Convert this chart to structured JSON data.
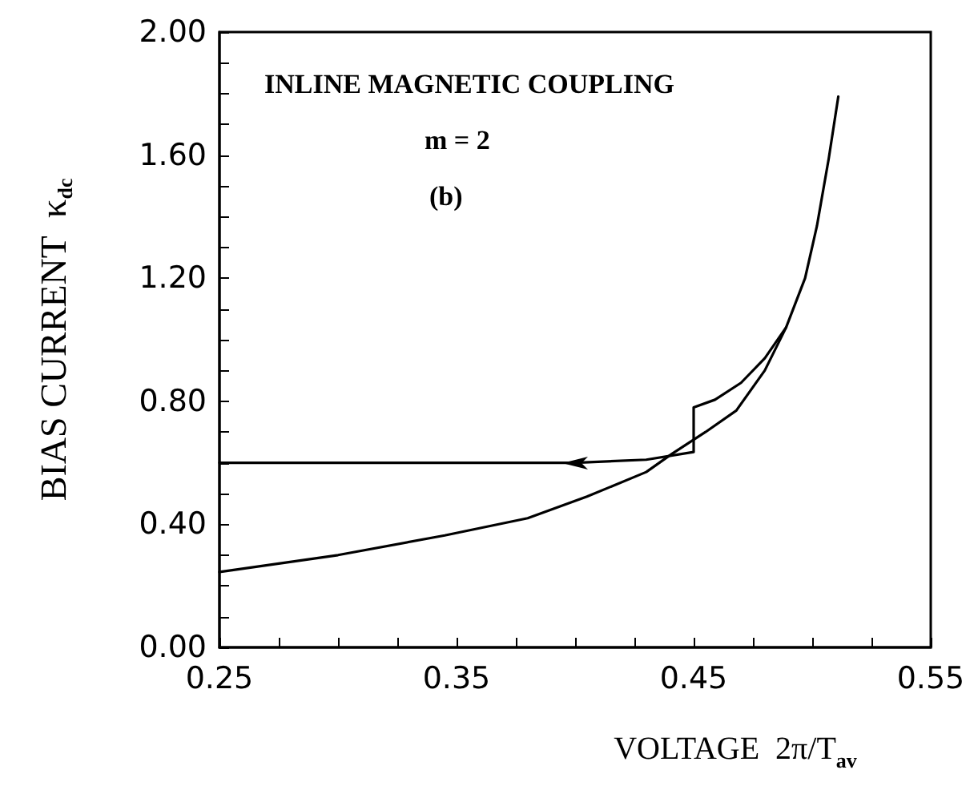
{
  "chart_data": {
    "type": "line",
    "xlabel": "VOLTAGE  2π/T$_{av}$",
    "ylabel": "BIAS CURRENT  κ$_{dc}$",
    "annotations": [
      "INLINE MAGNETIC COUPLING",
      "m = 2",
      "(b)"
    ],
    "series": [
      {
        "color": "#000000",
        "x": [
          0.25,
          0.3,
          0.345,
          0.38,
          0.405,
          0.43,
          0.441,
          0.455,
          0.468,
          0.48,
          0.489,
          0.497,
          0.502,
          0.507,
          0.511
        ],
        "values": [
          0.245,
          0.3,
          0.364,
          0.42,
          0.49,
          0.57,
          0.63,
          0.7,
          0.77,
          0.9,
          1.04,
          1.2,
          1.37,
          1.59,
          1.79
        ]
      },
      {
        "color": "#000000",
        "x": [
          0.25,
          0.4,
          0.43,
          0.45,
          0.45,
          0.459,
          0.47,
          0.48,
          0.489
        ],
        "values": [
          0.6,
          0.6,
          0.61,
          0.635,
          0.78,
          0.805,
          0.86,
          0.94,
          1.04
        ]
      }
    ],
    "xlim": [
      0.25,
      0.55
    ],
    "xticks": [
      {
        "value": 0.25,
        "label": "0.25"
      },
      {
        "value": 0.275,
        "label": null
      },
      {
        "value": 0.3,
        "label": null
      },
      {
        "value": 0.325,
        "label": null
      },
      {
        "value": 0.35,
        "label": "0.35"
      },
      {
        "value": 0.375,
        "label": null
      },
      {
        "value": 0.4,
        "label": null
      },
      {
        "value": 0.425,
        "label": null
      },
      {
        "value": 0.45,
        "label": "0.45"
      },
      {
        "value": 0.475,
        "label": null
      },
      {
        "value": 0.5,
        "label": null
      },
      {
        "value": 0.525,
        "label": null
      },
      {
        "value": 0.55,
        "label": "0.55"
      }
    ],
    "ylim": [
      0,
      2
    ],
    "yticks": [
      {
        "value": 0,
        "label": "0.00"
      },
      {
        "value": 0.1,
        "label": null
      },
      {
        "value": 0.2,
        "label": null
      },
      {
        "value": 0.3,
        "label": null
      },
      {
        "value": 0.4,
        "label": "0.40"
      },
      {
        "value": 0.5,
        "label": null
      },
      {
        "value": 0.6,
        "label": null
      },
      {
        "value": 0.7,
        "label": null
      },
      {
        "value": 0.8,
        "label": "0.80"
      },
      {
        "value": 0.9,
        "label": null
      },
      {
        "value": 1.0,
        "label": null
      },
      {
        "value": 1.1,
        "label": null
      },
      {
        "value": 1.2,
        "label": "1.20"
      },
      {
        "value": 1.3,
        "label": null
      },
      {
        "value": 1.4,
        "label": null
      },
      {
        "value": 1.5,
        "label": null
      },
      {
        "value": 1.6,
        "label": "1.60"
      },
      {
        "value": 1.7,
        "label": null
      },
      {
        "value": 1.8,
        "label": null
      },
      {
        "value": 1.9,
        "label": null
      },
      {
        "value": 2.0,
        "label": "2.00"
      }
    ],
    "grid": false,
    "marker": "none",
    "line_style": "solid"
  }
}
